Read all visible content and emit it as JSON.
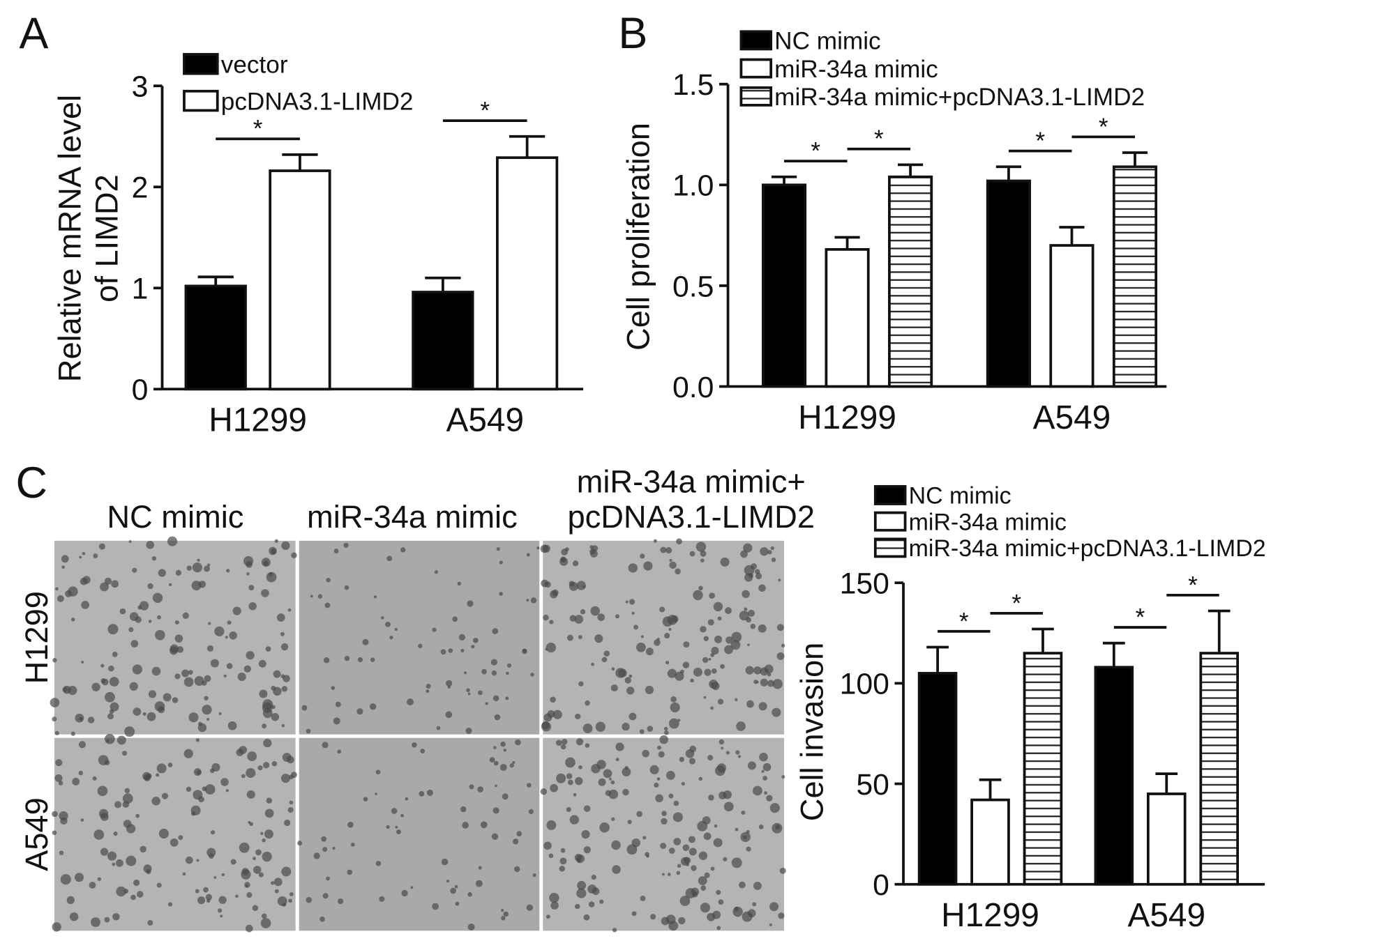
{
  "panel_labels": [
    "A",
    "B",
    "C"
  ],
  "chart_data": [
    {
      "type": "bar",
      "ylabel": [
        "Relative mRNA level",
        "of LIMD2"
      ],
      "categories": [
        "H1299",
        "A549"
      ],
      "series": [
        {
          "name": "vector",
          "color": "#000000",
          "values": [
            1.02,
            0.96
          ],
          "errors": [
            0.09,
            0.14
          ]
        },
        {
          "name": "pcDNA3.1-LIMD2",
          "color": "#ffffff",
          "values": [
            2.16,
            2.29
          ],
          "errors": [
            0.16,
            0.21
          ]
        }
      ],
      "ylim": [
        0,
        3
      ],
      "yticks": [
        0,
        1,
        2,
        3
      ],
      "annotations": [
        "*",
        "*"
      ]
    },
    {
      "type": "bar",
      "ylabel": [
        "Cell proliferation"
      ],
      "categories": [
        "H1299",
        "A549"
      ],
      "series": [
        {
          "name": "NC mimic",
          "color": "#000000",
          "values": [
            1.0,
            1.02
          ],
          "errors": [
            0.04,
            0.07
          ]
        },
        {
          "name": "miR-34a mimic",
          "color": "#ffffff",
          "values": [
            0.68,
            0.7
          ],
          "errors": [
            0.06,
            0.09
          ]
        },
        {
          "name": "miR-34a mimic+pcDNA3.1-LIMD2",
          "color": "hatched",
          "values": [
            1.04,
            1.09
          ],
          "errors": [
            0.06,
            0.07
          ]
        }
      ],
      "ylim": [
        0,
        1.5
      ],
      "yticks": [
        {
          "value": 0,
          "label": "0.0"
        },
        0.5,
        {
          "value": 1,
          "label": "1.0"
        },
        1.5
      ],
      "annotations": [
        "*",
        "*",
        "*",
        "*"
      ]
    },
    {
      "type": "bar",
      "ylabel": [
        "Cell invasion"
      ],
      "categories": [
        "H1299",
        "A549"
      ],
      "series": [
        {
          "name": "NC mimic",
          "color": "#000000",
          "values": [
            105,
            108
          ],
          "errors": [
            13,
            12
          ]
        },
        {
          "name": "miR-34a mimic",
          "color": "#ffffff",
          "values": [
            42,
            45
          ],
          "errors": [
            10,
            10
          ]
        },
        {
          "name": "miR-34a mimic+pcDNA3.1-LIMD2",
          "color": "hatched",
          "values": [
            115,
            115
          ],
          "errors": [
            12,
            21
          ]
        }
      ],
      "ylim": [
        0,
        150
      ],
      "yticks": [
        0,
        50,
        100,
        150
      ],
      "annotations": [
        "*",
        "*",
        "*",
        "*"
      ]
    }
  ],
  "micrographs": {
    "columns": [
      [
        "NC mimic"
      ],
      [
        "miR-34a mimic"
      ],
      [
        "miR-34a mimic+",
        "pcDNA3.1-LIMD2"
      ]
    ],
    "rows": [
      "H1299",
      "A549"
    ]
  }
}
